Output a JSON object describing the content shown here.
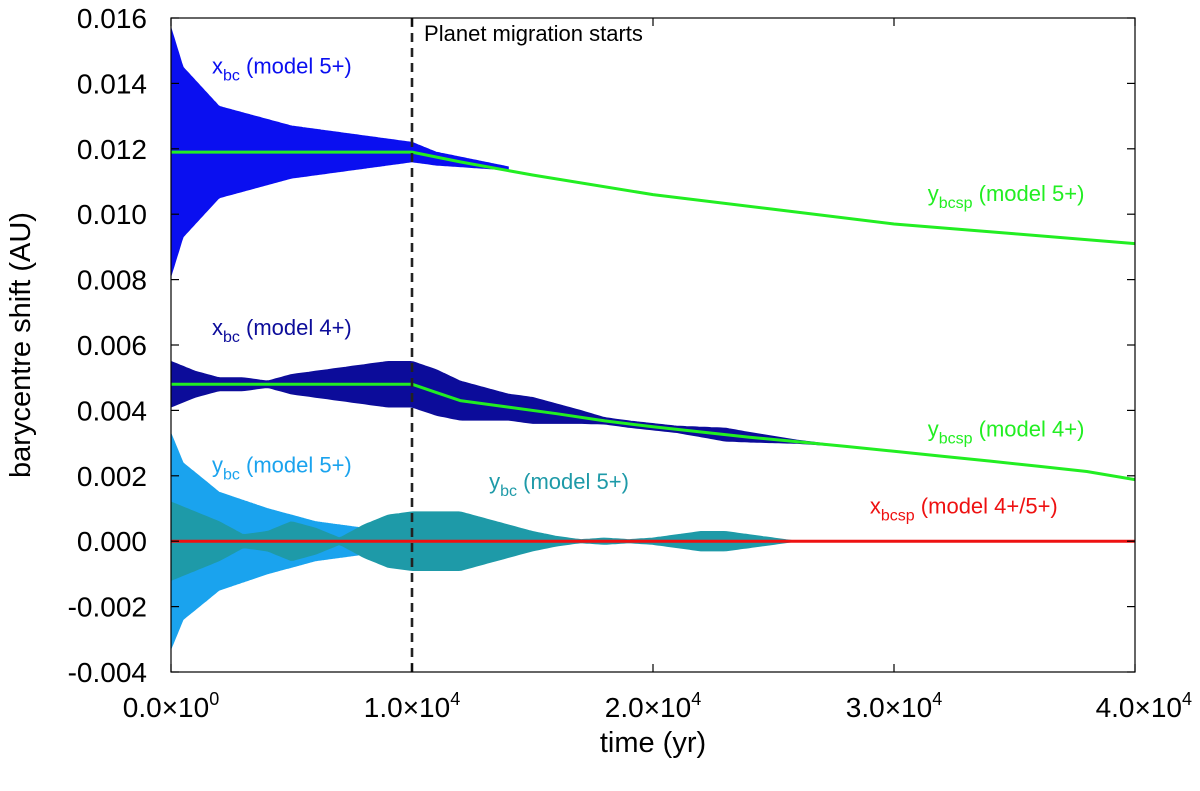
{
  "chart_data": {
    "type": "line",
    "title": "",
    "xlabel": "time (yr)",
    "ylabel": "barycentre shift (AU)",
    "xlim": [
      0,
      40000
    ],
    "ylim": [
      -0.004,
      0.016
    ],
    "x_ticks": [
      0,
      10000,
      20000,
      30000,
      40000
    ],
    "x_tick_mantissa": [
      "0.0",
      "1.0",
      "2.0",
      "3.0",
      "4.0"
    ],
    "x_tick_exponent": [
      "0",
      "4",
      "4",
      "4",
      "4"
    ],
    "x_tick_times": "×10",
    "y_ticks": [
      -0.004,
      -0.002,
      0.0,
      0.002,
      0.004,
      0.006,
      0.008,
      0.01,
      0.012,
      0.014,
      0.016
    ],
    "y_tick_labels": [
      "-0.004",
      "-0.002",
      "0.000",
      "0.002",
      "0.004",
      "0.006",
      "0.008",
      "0.010",
      "0.012",
      "0.014",
      "0.016"
    ],
    "grid": false,
    "colors": {
      "xbc_model5": "#0a0ff0",
      "xbc_model4": "#0c0c9a",
      "ybc_model5_light": "#1aa3ee",
      "ybc_model5_teal": "#1e9aa8",
      "ybcsp": "#22ee22",
      "xbcsp": "#ee1111",
      "migration_line": "#222222"
    },
    "series": [
      {
        "id": "xbc_model5",
        "kind": "band",
        "center": 0.0119,
        "x": [
          0,
          500,
          2000,
          5000,
          8000,
          10000,
          11000,
          12000,
          13000,
          14000
        ],
        "halfwidth": [
          0.0038,
          0.0026,
          0.0014,
          0.0008,
          0.0005,
          0.0003,
          0.0002,
          0.00015,
          0.0001,
          5e-05
        ],
        "center_trend": [
          0.0119,
          0.0119,
          0.0119,
          0.0119,
          0.0119,
          0.0119,
          0.0117,
          0.0116,
          0.0115,
          0.0114
        ]
      },
      {
        "id": "xbc_model4",
        "kind": "band",
        "x": [
          0,
          1000,
          2000,
          3000,
          4000,
          5000,
          6000,
          7000,
          8000,
          9000,
          10000,
          11000,
          12000,
          13000,
          14000,
          15000,
          16000,
          17000,
          18000,
          19000,
          20000,
          21000,
          22000,
          23000,
          24000,
          25000,
          26000,
          27000,
          28000
        ],
        "center": [
          0.0048,
          0.0048,
          0.0048,
          0.0048,
          0.0048,
          0.0048,
          0.0048,
          0.0048,
          0.0048,
          0.0048,
          0.0048,
          0.00455,
          0.0043,
          0.0042,
          0.0041,
          0.004,
          0.0039,
          0.0038,
          0.00368,
          0.00358,
          0.0035,
          0.00342,
          0.00334,
          0.00326,
          0.00318,
          0.00311,
          0.00304,
          0.00297,
          0.0029
        ],
        "halfwidth": [
          0.0007,
          0.0004,
          0.0002,
          0.0002,
          0.0001,
          0.0003,
          0.0004,
          0.0005,
          0.0006,
          0.0007,
          0.0007,
          0.0007,
          0.0006,
          0.0005,
          0.0004,
          0.0004,
          0.0003,
          0.0002,
          0.0001,
          0.0001,
          0.0001,
          0.0001,
          0.00015,
          0.0002,
          0.00015,
          0.0001,
          5e-05,
          3e-05,
          0.0
        ]
      },
      {
        "id": "ybc_model5_light",
        "kind": "band",
        "center": 0.0,
        "x": [
          0,
          500,
          2000,
          4000,
          6000,
          8000,
          10000
        ],
        "halfwidth": [
          0.0033,
          0.0024,
          0.0015,
          0.001,
          0.0006,
          0.0004,
          0.0003
        ]
      },
      {
        "id": "ybc_model5_teal",
        "kind": "band",
        "center": 0.0,
        "x": [
          0,
          1000,
          2000,
          3000,
          4000,
          5000,
          6000,
          7000,
          8000,
          9000,
          10000,
          11000,
          12000,
          13000,
          14000,
          15000,
          16000,
          17000,
          18000,
          19000,
          20000,
          21000,
          22000,
          23000,
          24000,
          25000,
          26000
        ],
        "halfwidth": [
          0.0012,
          0.0009,
          0.0006,
          0.0002,
          0.0003,
          0.0006,
          0.0004,
          0.0001,
          0.0005,
          0.0008,
          0.0009,
          0.0009,
          0.0009,
          0.0007,
          0.0005,
          0.0003,
          0.00015,
          5e-05,
          0.0001,
          5e-05,
          0.0001,
          0.0002,
          0.0003,
          0.0003,
          0.0002,
          0.0001,
          0.0
        ]
      },
      {
        "id": "ybcsp_model5",
        "kind": "line",
        "x": [
          0,
          10000,
          12000,
          15000,
          20000,
          25000,
          30000,
          35000,
          40000
        ],
        "y": [
          0.0119,
          0.0119,
          0.0116,
          0.0112,
          0.0106,
          0.01015,
          0.0097,
          0.0094,
          0.0091
        ]
      },
      {
        "id": "ybcsp_model4",
        "kind": "line",
        "x": [
          0,
          10000,
          11000,
          12000,
          14000,
          16000,
          18000,
          20000,
          22000,
          24000,
          26000,
          28000,
          30000,
          32000,
          34000,
          36000,
          38000,
          40000
        ],
        "y": [
          0.0048,
          0.0048,
          0.00455,
          0.0043,
          0.0041,
          0.0039,
          0.00368,
          0.0035,
          0.00334,
          0.00318,
          0.00304,
          0.0029,
          0.00275,
          0.0026,
          0.00245,
          0.00229,
          0.00213,
          0.00188
        ]
      },
      {
        "id": "xbcsp",
        "kind": "line",
        "x": [
          0,
          40000
        ],
        "y": [
          0.0,
          0.0
        ]
      }
    ],
    "migration_start": 10000,
    "annotations": [
      {
        "id": "xbc5",
        "main": "x",
        "sub": "bc",
        "rest": " (model 5+)",
        "x": 1700,
        "y": 0.0143,
        "color": "#0a0ff0"
      },
      {
        "id": "xbc4",
        "main": "x",
        "sub": "bc",
        "rest": " (model 4+)",
        "x": 1700,
        "y": 0.0063,
        "color": "#0c0c9a"
      },
      {
        "id": "ybc5light",
        "main": "y",
        "sub": "bc",
        "rest": " (model 5+)",
        "x": 1700,
        "y": 0.0021,
        "color": "#1aa3ee"
      },
      {
        "id": "ybc5teal",
        "main": "y",
        "sub": "bc",
        "rest": " (model 5+)",
        "x": 13200,
        "y": 0.0016,
        "color": "#1e9aa8"
      },
      {
        "id": "ybcsp5",
        "main": "y",
        "sub": "bcsp",
        "rest": " (model 5+)",
        "x": 31400,
        "y": 0.0104,
        "color": "#22ee22"
      },
      {
        "id": "ybcsp4",
        "main": "y",
        "sub": "bcsp",
        "rest": " (model 4+)",
        "x": 31400,
        "y": 0.0032,
        "color": "#22ee22"
      },
      {
        "id": "xbcsp",
        "main": "x",
        "sub": "bcsp",
        "rest": " (model 4+/5+)",
        "x": 29000,
        "y": 0.00085,
        "color": "#ee1111"
      },
      {
        "id": "migration",
        "main": "Planet migration starts",
        "sub": "",
        "rest": "",
        "x": 10500,
        "y": 0.0153,
        "color": "#000000"
      }
    ]
  }
}
